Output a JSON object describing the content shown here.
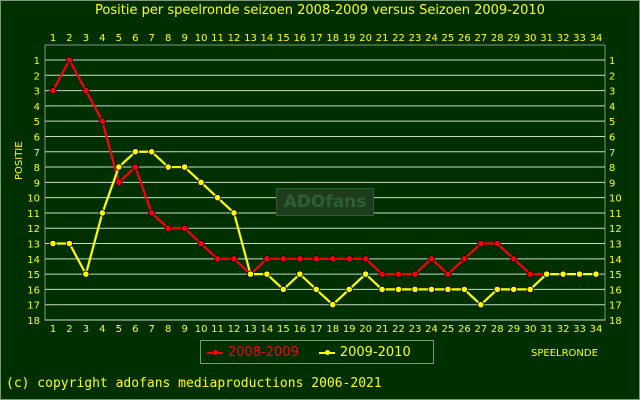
{
  "title": "Positie per speelronde seizoen 2008-2009 versus Seizoen 2009-2010",
  "copyright": "(c) copyright adofans mediaproductions 2006-2021",
  "watermark": "ADOfans",
  "colors": {
    "background": "#003000",
    "gridline": "#c8dcc8",
    "text": "#ffff00",
    "series_2008": "#ff0000",
    "series_2009": "#ffff00",
    "marker_outline": "#000000"
  },
  "legend": {
    "series_2008_label": "2008-2009",
    "series_2009_label": "2009-2010"
  },
  "chart_data": {
    "type": "line",
    "title": "Positie per speelronde seizoen 2008-2009 versus Seizoen 2009-2010",
    "xlabel": "SPEELRONDE",
    "ylabel": "POSITIE",
    "x": [
      1,
      2,
      3,
      4,
      5,
      6,
      7,
      8,
      9,
      10,
      11,
      12,
      13,
      14,
      15,
      16,
      17,
      18,
      19,
      20,
      21,
      22,
      23,
      24,
      25,
      26,
      27,
      28,
      29,
      30,
      31,
      32,
      33,
      34
    ],
    "xlim": [
      1,
      34
    ],
    "ylim": [
      1,
      18
    ],
    "y_inverted": true,
    "grid": true,
    "legend_position": "bottom",
    "series": [
      {
        "name": "2008-2009",
        "color": "#ff0000",
        "values": [
          3,
          1,
          3,
          5,
          9,
          8,
          11,
          12,
          12,
          13,
          14,
          14,
          15,
          14,
          14,
          14,
          14,
          14,
          14,
          14,
          15,
          15,
          15,
          14,
          15,
          14,
          13,
          13,
          14,
          15,
          15,
          15,
          null,
          null
        ]
      },
      {
        "name": "2009-2010",
        "color": "#ffff00",
        "values": [
          13,
          13,
          15,
          11,
          8,
          7,
          7,
          8,
          8,
          9,
          10,
          11,
          15,
          15,
          16,
          15,
          16,
          17,
          16,
          15,
          16,
          16,
          16,
          16,
          16,
          16,
          17,
          16,
          16,
          16,
          15,
          15,
          15,
          15
        ]
      }
    ]
  }
}
